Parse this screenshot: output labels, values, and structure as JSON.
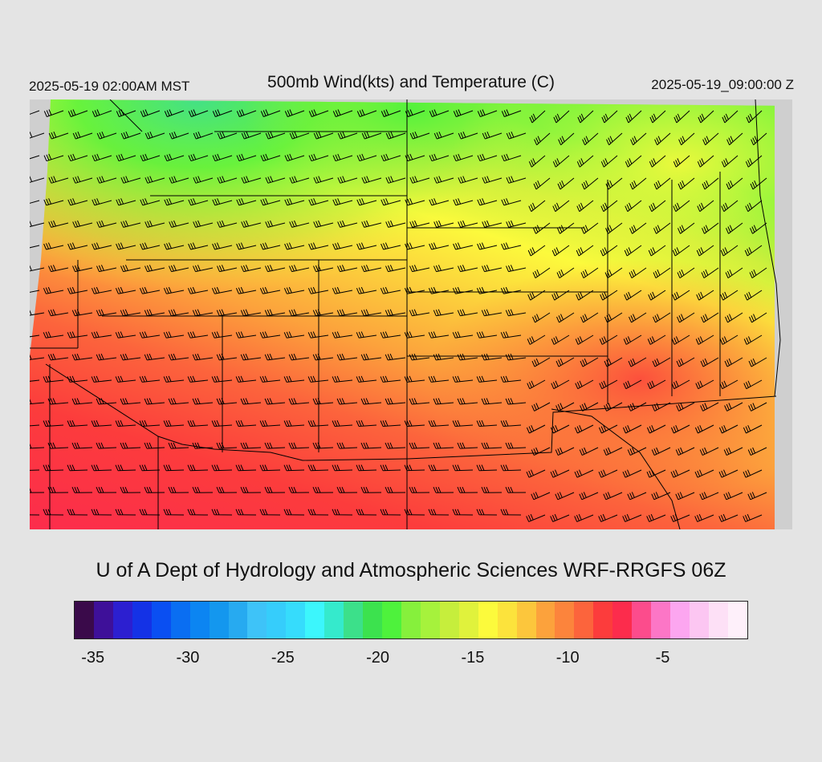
{
  "header": {
    "local_time": "2025-05-19 02:00AM MST",
    "title": "500mb Wind(kts) and Temperature (C)",
    "valid_time": "2025-05-19_09:00:00 Z"
  },
  "credit": "U of A Dept of Hydrology and Atmospheric Sciences WRF-RRGFS 06Z",
  "colorbar": {
    "colors": [
      "#3a0a4a",
      "#3e1099",
      "#2c1fd0",
      "#1432e6",
      "#0a4ff2",
      "#0a6ef2",
      "#0c85f2",
      "#1497ee",
      "#27aaf0",
      "#3ec3f8",
      "#36cdfb",
      "#36dcfc",
      "#3cf6fc",
      "#35eacc",
      "#3ce08a",
      "#3ce24e",
      "#4ef23c",
      "#86f03c",
      "#a6f23c",
      "#c6ee3c",
      "#e0f23c",
      "#fcfa3c",
      "#fce33c",
      "#fcc63c",
      "#fca23c",
      "#fc843c",
      "#fc643c",
      "#fc3c3c",
      "#fc2c4c",
      "#fc4c8c",
      "#fc76c6",
      "#fca6f0",
      "#fcc6f2",
      "#fde0f6",
      "#fef0fa"
    ],
    "tick_labels": [
      "-35",
      "-30",
      "-25",
      "-20",
      "-15",
      "-10",
      "-5"
    ],
    "tick_values": [
      -35,
      -30,
      -25,
      -20,
      -15,
      -10,
      -5
    ],
    "value_min": -36.0,
    "value_max": -0.5
  },
  "map": {
    "background_color": "#cfcfcf",
    "temperature_note_color_warm": "#fc2c4c",
    "temperature_note_color_cold": "#4ef23c",
    "barb_color": "#000000"
  }
}
